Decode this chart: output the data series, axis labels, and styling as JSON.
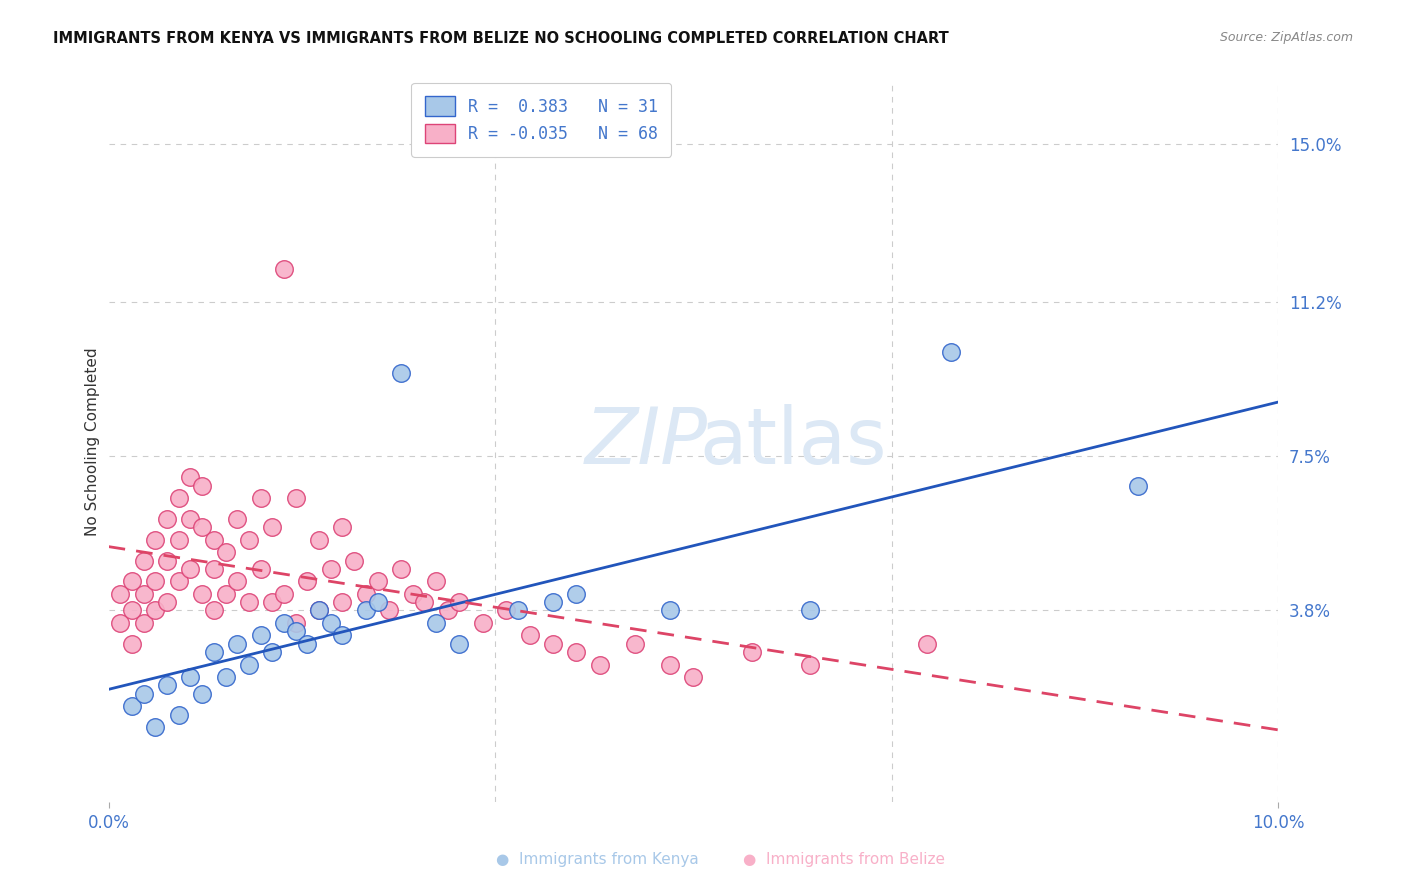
{
  "title": "IMMIGRANTS FROM KENYA VS IMMIGRANTS FROM BELIZE NO SCHOOLING COMPLETED CORRELATION CHART",
  "source": "Source: ZipAtlas.com",
  "ylabel": "No Schooling Completed",
  "ytick_labels": [
    "3.8%",
    "7.5%",
    "11.2%",
    "15.0%"
  ],
  "ytick_values": [
    0.038,
    0.075,
    0.112,
    0.15
  ],
  "xlim": [
    0.0,
    0.1
  ],
  "ylim": [
    -0.008,
    0.165
  ],
  "legend_kenya_R": "0.383",
  "legend_kenya_N": "31",
  "legend_belize_R": "-0.035",
  "legend_belize_N": "68",
  "color_kenya": "#a8c8e8",
  "color_belize": "#f8b0c8",
  "color_kenya_line": "#2255bb",
  "color_belize_line": "#dd4466",
  "color_kenya_edge": "#3366cc",
  "color_belize_edge": "#dd4477",
  "kenya_x": [
    0.002,
    0.003,
    0.004,
    0.005,
    0.006,
    0.007,
    0.008,
    0.009,
    0.01,
    0.011,
    0.012,
    0.013,
    0.014,
    0.015,
    0.016,
    0.017,
    0.018,
    0.019,
    0.02,
    0.022,
    0.023,
    0.025,
    0.028,
    0.03,
    0.035,
    0.038,
    0.04,
    0.048,
    0.06,
    0.072,
    0.088
  ],
  "kenya_y": [
    0.015,
    0.018,
    0.01,
    0.02,
    0.013,
    0.022,
    0.018,
    0.028,
    0.022,
    0.03,
    0.025,
    0.032,
    0.028,
    0.035,
    0.033,
    0.03,
    0.038,
    0.035,
    0.032,
    0.038,
    0.04,
    0.095,
    0.035,
    0.03,
    0.038,
    0.04,
    0.042,
    0.038,
    0.038,
    0.1,
    0.068
  ],
  "belize_x": [
    0.001,
    0.001,
    0.002,
    0.002,
    0.002,
    0.003,
    0.003,
    0.003,
    0.004,
    0.004,
    0.004,
    0.005,
    0.005,
    0.005,
    0.006,
    0.006,
    0.006,
    0.007,
    0.007,
    0.007,
    0.008,
    0.008,
    0.008,
    0.009,
    0.009,
    0.009,
    0.01,
    0.01,
    0.011,
    0.011,
    0.012,
    0.012,
    0.013,
    0.013,
    0.014,
    0.014,
    0.015,
    0.015,
    0.016,
    0.016,
    0.017,
    0.018,
    0.018,
    0.019,
    0.02,
    0.02,
    0.021,
    0.022,
    0.023,
    0.024,
    0.025,
    0.026,
    0.027,
    0.028,
    0.029,
    0.03,
    0.032,
    0.034,
    0.036,
    0.038,
    0.04,
    0.042,
    0.045,
    0.048,
    0.05,
    0.055,
    0.06,
    0.07
  ],
  "belize_y": [
    0.035,
    0.042,
    0.038,
    0.045,
    0.03,
    0.05,
    0.042,
    0.035,
    0.055,
    0.045,
    0.038,
    0.06,
    0.05,
    0.04,
    0.065,
    0.055,
    0.045,
    0.07,
    0.06,
    0.048,
    0.068,
    0.058,
    0.042,
    0.055,
    0.048,
    0.038,
    0.052,
    0.042,
    0.06,
    0.045,
    0.055,
    0.04,
    0.065,
    0.048,
    0.058,
    0.04,
    0.12,
    0.042,
    0.065,
    0.035,
    0.045,
    0.055,
    0.038,
    0.048,
    0.058,
    0.04,
    0.05,
    0.042,
    0.045,
    0.038,
    0.048,
    0.042,
    0.04,
    0.045,
    0.038,
    0.04,
    0.035,
    0.038,
    0.032,
    0.03,
    0.028,
    0.025,
    0.03,
    0.025,
    0.022,
    0.028,
    0.025,
    0.03
  ],
  "background_color": "#ffffff",
  "grid_color": "#cccccc",
  "title_color": "#111111",
  "source_color": "#888888",
  "axis_label_color": "#333333",
  "tick_color": "#4477cc"
}
